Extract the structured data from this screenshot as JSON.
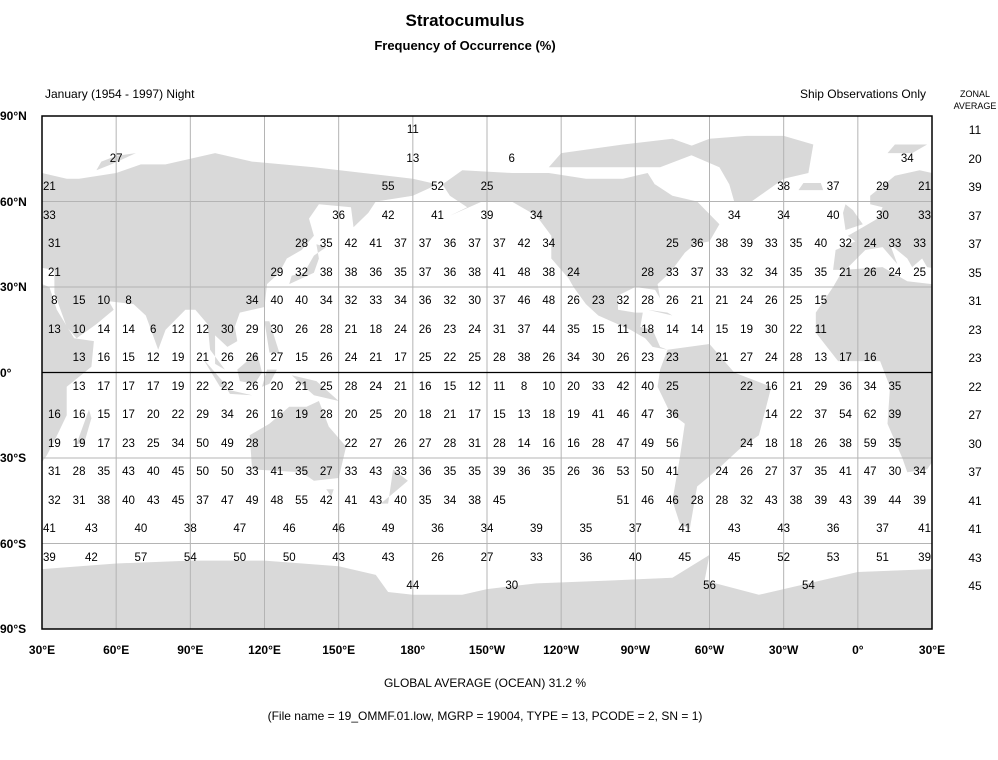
{
  "title": "Stratocumulus",
  "subtitle": "Frequency of Occurrence (%)",
  "period": "January (1954 - 1997) Night",
  "source_note": "Ship Observations Only",
  "zonal_header": [
    "ZONAL",
    "AVERAGE"
  ],
  "global_average": "GLOBAL AVERAGE (OCEAN)   31.2 %",
  "file_info": "(File name = 19_OMMF.01.low, MGRP = 19004, TYPE = 13, PCODE = 2, SN = 1)",
  "colors": {
    "land": "#d9d9d9",
    "grid": "#b4b4b4",
    "ocean": "#ffffff",
    "equator": "#000000"
  },
  "lat_labels": [
    {
      "lat": 90,
      "label": "90°N"
    },
    {
      "lat": 60,
      "label": "60°N"
    },
    {
      "lat": 30,
      "label": "30°N"
    },
    {
      "lat": 0,
      "label": "0°"
    },
    {
      "lat": -30,
      "label": "30°S"
    },
    {
      "lat": -60,
      "label": "60°S"
    },
    {
      "lat": -90,
      "label": "90°S"
    }
  ],
  "lon_labels": [
    "30°E",
    "60°E",
    "90°E",
    "120°E",
    "150°E",
    "180°",
    "150°W",
    "120°W",
    "90°W",
    "60°W",
    "30°W",
    "0°",
    "30°E"
  ],
  "zonal_average": [
    11,
    20,
    39,
    37,
    37,
    35,
    31,
    23,
    23,
    22,
    27,
    30,
    37,
    41,
    41,
    43,
    45
  ],
  "rows": [
    {
      "lat": 85,
      "cells": [
        [
          180,
          11
        ]
      ]
    },
    {
      "lat": 75,
      "cells": [
        [
          60,
          27
        ],
        [
          180,
          13
        ],
        [
          -140,
          6
        ],
        [
          20,
          34
        ]
      ]
    },
    {
      "lat": 65,
      "cells": [
        [
          33,
          21
        ],
        [
          170,
          55
        ],
        [
          -170,
          52
        ],
        [
          -150,
          25
        ],
        [
          -30,
          38
        ],
        [
          -10,
          37
        ],
        [
          10,
          29
        ],
        [
          27,
          21
        ]
      ]
    },
    {
      "lat": 55,
      "cells": [
        [
          33,
          33
        ],
        [
          150,
          36
        ],
        [
          170,
          42
        ],
        [
          -170,
          41
        ],
        [
          -150,
          39
        ],
        [
          -130,
          34
        ],
        [
          -50,
          34
        ],
        [
          -30,
          34
        ],
        [
          -10,
          40
        ],
        [
          10,
          30
        ],
        [
          27,
          33
        ]
      ]
    },
    {
      "lat": 45,
      "values": [
        31,
        null,
        null,
        null,
        null,
        null,
        null,
        null,
        null,
        null,
        28,
        35,
        42,
        41,
        37,
        37,
        36,
        37,
        37,
        42,
        34,
        null,
        null,
        null,
        null,
        25,
        36,
        38,
        39,
        33,
        35,
        40,
        32,
        24,
        33,
        33
      ]
    },
    {
      "lat": 35,
      "values": [
        21,
        null,
        null,
        null,
        null,
        null,
        null,
        null,
        null,
        29,
        32,
        38,
        38,
        36,
        35,
        37,
        36,
        38,
        41,
        48,
        38,
        24,
        null,
        null,
        28,
        33,
        37,
        33,
        32,
        34,
        35,
        35,
        21,
        26,
        24,
        25
      ]
    },
    {
      "lat": 25,
      "values": [
        8,
        15,
        10,
        8,
        null,
        null,
        null,
        null,
        34,
        40,
        40,
        34,
        32,
        33,
        34,
        36,
        32,
        30,
        37,
        46,
        48,
        26,
        23,
        32,
        28,
        26,
        21,
        21,
        24,
        26,
        25,
        15,
        null,
        null,
        null,
        null
      ]
    },
    {
      "lat": 15,
      "values": [
        13,
        10,
        14,
        14,
        6,
        12,
        12,
        30,
        29,
        30,
        26,
        28,
        21,
        18,
        24,
        26,
        23,
        24,
        31,
        37,
        44,
        35,
        15,
        11,
        18,
        14,
        14,
        15,
        19,
        30,
        22,
        11,
        null,
        null,
        null,
        null
      ]
    },
    {
      "lat": 5,
      "values": [
        null,
        13,
        16,
        15,
        12,
        19,
        21,
        26,
        26,
        27,
        15,
        26,
        24,
        21,
        17,
        25,
        22,
        25,
        28,
        38,
        26,
        34,
        30,
        26,
        23,
        23,
        null,
        21,
        27,
        24,
        28,
        13,
        17,
        16,
        null,
        null
      ]
    },
    {
      "lat": -5,
      "values": [
        null,
        13,
        17,
        17,
        17,
        19,
        22,
        22,
        26,
        20,
        21,
        25,
        28,
        24,
        21,
        16,
        15,
        12,
        11,
        8,
        10,
        20,
        33,
        42,
        40,
        25,
        null,
        null,
        22,
        16,
        21,
        29,
        36,
        34,
        35,
        null
      ]
    },
    {
      "lat": -15,
      "values": [
        16,
        16,
        15,
        17,
        20,
        22,
        29,
        34,
        26,
        16,
        19,
        28,
        20,
        25,
        20,
        18,
        21,
        17,
        15,
        13,
        18,
        19,
        41,
        46,
        47,
        36,
        null,
        null,
        null,
        14,
        22,
        37,
        54,
        62,
        39,
        null
      ]
    },
    {
      "lat": -25,
      "values": [
        19,
        19,
        17,
        23,
        25,
        34,
        50,
        49,
        28,
        null,
        null,
        null,
        22,
        27,
        26,
        27,
        28,
        31,
        28,
        14,
        16,
        16,
        28,
        47,
        49,
        56,
        null,
        null,
        24,
        18,
        18,
        26,
        38,
        59,
        35,
        null
      ]
    },
    {
      "lat": -35,
      "values": [
        31,
        28,
        35,
        43,
        40,
        45,
        50,
        50,
        33,
        41,
        35,
        27,
        33,
        43,
        33,
        36,
        35,
        35,
        39,
        36,
        35,
        26,
        36,
        53,
        50,
        41,
        null,
        24,
        26,
        27,
        37,
        35,
        41,
        47,
        30,
        34
      ]
    },
    {
      "lat": -45,
      "values": [
        32,
        31,
        38,
        40,
        43,
        45,
        37,
        47,
        49,
        48,
        55,
        42,
        41,
        43,
        40,
        35,
        34,
        38,
        45,
        null,
        null,
        null,
        null,
        51,
        46,
        46,
        28,
        28,
        32,
        43,
        38,
        39,
        43,
        39,
        44,
        39
      ]
    },
    {
      "lat": -55,
      "cells": [
        [
          33,
          41
        ],
        [
          50,
          43
        ],
        [
          70,
          40
        ],
        [
          90,
          38
        ],
        [
          110,
          47
        ],
        [
          130,
          46
        ],
        [
          150,
          46
        ],
        [
          170,
          49
        ],
        [
          -170,
          36
        ],
        [
          -150,
          34
        ],
        [
          -130,
          39
        ],
        [
          -110,
          35
        ],
        [
          -90,
          37
        ],
        [
          -70,
          41
        ],
        [
          -50,
          43
        ],
        [
          -30,
          43
        ],
        [
          -10,
          36
        ],
        [
          10,
          37
        ],
        [
          27,
          41
        ]
      ]
    },
    {
      "lat": -65,
      "cells": [
        [
          33,
          39
        ],
        [
          50,
          42
        ],
        [
          70,
          57
        ],
        [
          90,
          54
        ],
        [
          110,
          50
        ],
        [
          130,
          50
        ],
        [
          150,
          43
        ],
        [
          170,
          43
        ],
        [
          -170,
          26
        ],
        [
          -150,
          27
        ],
        [
          -130,
          33
        ],
        [
          -110,
          36
        ],
        [
          -90,
          40
        ],
        [
          -70,
          45
        ],
        [
          -50,
          45
        ],
        [
          -30,
          52
        ],
        [
          -10,
          53
        ],
        [
          10,
          51
        ],
        [
          27,
          39
        ]
      ]
    },
    {
      "lat": -75,
      "cells": [
        [
          180,
          44
        ],
        [
          -140,
          30
        ],
        [
          -60,
          56
        ],
        [
          -20,
          54
        ]
      ]
    }
  ]
}
